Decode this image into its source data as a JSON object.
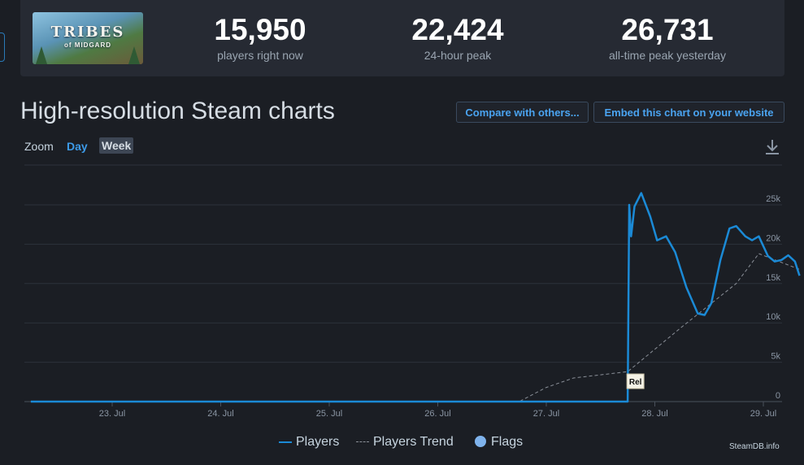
{
  "game": {
    "thumb_title": "TRIBES",
    "thumb_subtitle": "of MIDGARD"
  },
  "stats": [
    {
      "value": "15,950",
      "label": "players right now"
    },
    {
      "value": "22,424",
      "label": "24-hour peak"
    },
    {
      "value": "26,731",
      "label": "all-time peak yesterday"
    }
  ],
  "page_title": "High-resolution Steam charts",
  "buttons": {
    "compare": "Compare with others...",
    "embed": "Embed this chart on your website"
  },
  "zoom": {
    "label": "Zoom",
    "day": "Day",
    "week": "Week",
    "selected": "Week"
  },
  "icons": {
    "download": "download-icon"
  },
  "legend": {
    "players": "Players",
    "trend": "Players Trend",
    "flags": "Flags"
  },
  "credit": "SteamDB.info",
  "colors": {
    "players": "#1b8ad6",
    "trend": "#8a8f98",
    "flags": "#7fb3ec",
    "accent": "#3d9be9"
  },
  "chart_data": {
    "type": "line",
    "x_tick_labels": [
      "23. Jul",
      "24. Jul",
      "25. Jul",
      "26. Jul",
      "27. Jul",
      "28. Jul",
      "29. Jul"
    ],
    "y_tick_labels": [
      "0",
      "5k",
      "10k",
      "15k",
      "20k",
      "25k"
    ],
    "ylim": [
      0,
      25000
    ],
    "grid": true,
    "legend_position": "bottom",
    "series": [
      {
        "name": "Players",
        "points": [
          [
            "2025-07-22T06:00",
            0
          ],
          [
            "2025-07-27T16:00",
            0
          ],
          [
            "2025-07-27T18:00",
            0
          ],
          [
            "2025-07-27T18:20",
            25000
          ],
          [
            "2025-07-27T18:45",
            21000
          ],
          [
            "2025-07-27T19:30",
            24800
          ],
          [
            "2025-07-27T21:00",
            26500
          ],
          [
            "2025-07-27T23:00",
            23500
          ],
          [
            "2025-07-28T00:30",
            20500
          ],
          [
            "2025-07-28T02:30",
            21000
          ],
          [
            "2025-07-28T04:30",
            19000
          ],
          [
            "2025-07-28T07:00",
            14500
          ],
          [
            "2025-07-28T09:30",
            11200
          ],
          [
            "2025-07-28T11:00",
            11000
          ],
          [
            "2025-07-28T12:30",
            12500
          ],
          [
            "2025-07-28T14:30",
            18000
          ],
          [
            "2025-07-28T16:30",
            22000
          ],
          [
            "2025-07-28T18:00",
            22300
          ],
          [
            "2025-07-28T20:00",
            21000
          ],
          [
            "2025-07-28T21:30",
            20500
          ],
          [
            "2025-07-28T23:00",
            21000
          ],
          [
            "2025-07-29T01:00",
            18500
          ],
          [
            "2025-07-29T02:30",
            17800
          ],
          [
            "2025-07-29T04:00",
            18000
          ],
          [
            "2025-07-29T05:30",
            18600
          ],
          [
            "2025-07-29T07:00",
            17800
          ],
          [
            "2025-07-29T08:00",
            16000
          ]
        ]
      },
      {
        "name": "Players Trend",
        "points": [
          [
            "2025-07-22T06:00",
            0
          ],
          [
            "2025-07-26T18:00",
            0
          ],
          [
            "2025-07-27T00:00",
            1800
          ],
          [
            "2025-07-27T06:00",
            3000
          ],
          [
            "2025-07-27T18:00",
            3800
          ],
          [
            "2025-07-28T06:00",
            9500
          ],
          [
            "2025-07-28T18:00",
            15000
          ],
          [
            "2025-07-28T23:00",
            18800
          ],
          [
            "2025-07-29T08:00",
            16800
          ]
        ]
      }
    ],
    "flags": [
      {
        "x": "2025-07-27T18:00",
        "label": "Rel"
      }
    ]
  }
}
